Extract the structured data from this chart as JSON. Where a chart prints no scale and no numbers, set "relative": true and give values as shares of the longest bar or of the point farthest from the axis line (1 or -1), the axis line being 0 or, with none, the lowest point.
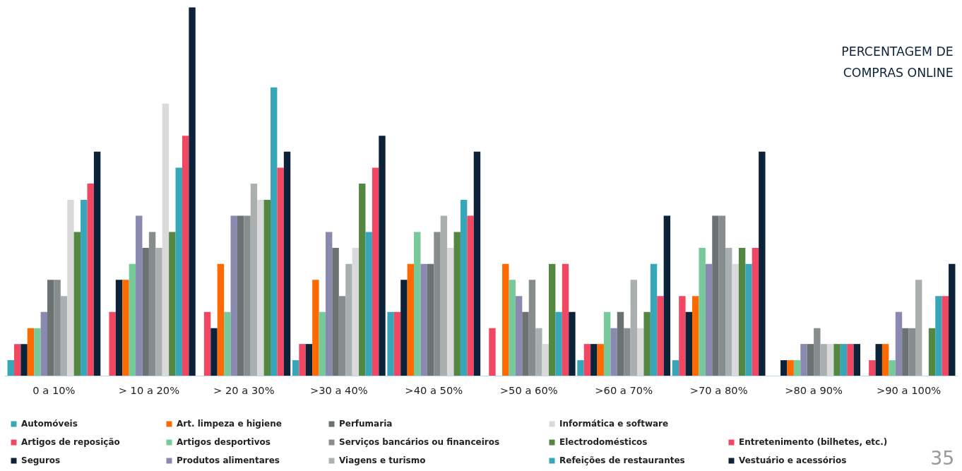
{
  "chart_data": {
    "type": "bar",
    "relative": true,
    "title": "PERCENTAGEM DE\nCOMPRAS ONLINE",
    "categories": [
      "0 a 10%",
      "> 10 a 20%",
      "> 20 a 30%",
      ">30 a 40%",
      ">40 a 50%",
      ">50 a 60%",
      ">60 a 70%",
      ">70 a 80%",
      ">80 a 90%",
      ">90 a 100%"
    ],
    "series": [
      {
        "name": "Automóveis",
        "color": "#36a6b8",
        "values": [
          0.043,
          0,
          0,
          0.043,
          0.174,
          0,
          0.043,
          0.043,
          0,
          0
        ]
      },
      {
        "name": "Artigos de reposição",
        "color": "#f04763",
        "values": [
          0.087,
          0.174,
          0.174,
          0.087,
          0.174,
          0.13,
          0.087,
          0.217,
          0,
          0.043
        ]
      },
      {
        "name": "Seguros",
        "color": "#0b2239",
        "values": [
          0.087,
          0.261,
          0.13,
          0.087,
          0.261,
          0,
          0.087,
          0.174,
          0.043,
          0.087
        ]
      },
      {
        "name": "Art. limpeza e higiene",
        "color": "#ff6a00",
        "values": [
          0.13,
          0.261,
          0.304,
          0.261,
          0.304,
          0.304,
          0.087,
          0.217,
          0.043,
          0.087
        ]
      },
      {
        "name": "Artigos desportivos",
        "color": "#76c999",
        "values": [
          0.13,
          0.304,
          0.174,
          0.174,
          0.391,
          0.261,
          0.174,
          0.348,
          0.043,
          0.043
        ]
      },
      {
        "name": "Produtos alimentares",
        "color": "#8a89b0",
        "values": [
          0.174,
          0.435,
          0.435,
          0.391,
          0.304,
          0.217,
          0.13,
          0.304,
          0.087,
          0.174
        ]
      },
      {
        "name": "Perfumaria",
        "color": "#6c7272",
        "values": [
          0.261,
          0.348,
          0.435,
          0.348,
          0.304,
          0.174,
          0.174,
          0.435,
          0.087,
          0.13
        ]
      },
      {
        "name": "Serviços bancários ou financeiros",
        "color": "#878c8c",
        "values": [
          0.261,
          0.391,
          0.435,
          0.217,
          0.391,
          0.261,
          0.13,
          0.435,
          0.13,
          0.13
        ]
      },
      {
        "name": "Viagens e turismo",
        "color": "#aab0b0",
        "values": [
          0.217,
          0.348,
          0.522,
          0.304,
          0.435,
          0.13,
          0.261,
          0.348,
          0.087,
          0.261
        ]
      },
      {
        "name": "Informática e software",
        "color": "#dadada",
        "values": [
          0.478,
          0.739,
          0.478,
          0.348,
          0.348,
          0.087,
          0.13,
          0.304,
          0.087,
          0
        ]
      },
      {
        "name": "Electrodomésticos",
        "color": "#548741",
        "values": [
          0.391,
          0.391,
          0.478,
          0.522,
          0.391,
          0.304,
          0.174,
          0.348,
          0.087,
          0.13
        ]
      },
      {
        "name": "Refeições de restaurantes",
        "color": "#36a6b8",
        "values": [
          0.478,
          0.565,
          0.783,
          0.391,
          0.478,
          0.174,
          0.304,
          0.304,
          0.087,
          0.217
        ]
      },
      {
        "name": "Entretenimento (bilhetes, etc.)",
        "color": "#f04763",
        "values": [
          0.522,
          0.652,
          0.565,
          0.565,
          0.435,
          0.304,
          0.217,
          0.348,
          0.087,
          0.217
        ]
      },
      {
        "name": "Vestuário e acessórios",
        "color": "#0b2239",
        "values": [
          0.609,
          1,
          0.609,
          0.652,
          0.609,
          0.174,
          0.435,
          0.609,
          0.087,
          0.304
        ]
      }
    ],
    "annotations": [
      "35"
    ],
    "legend": "bottom"
  }
}
